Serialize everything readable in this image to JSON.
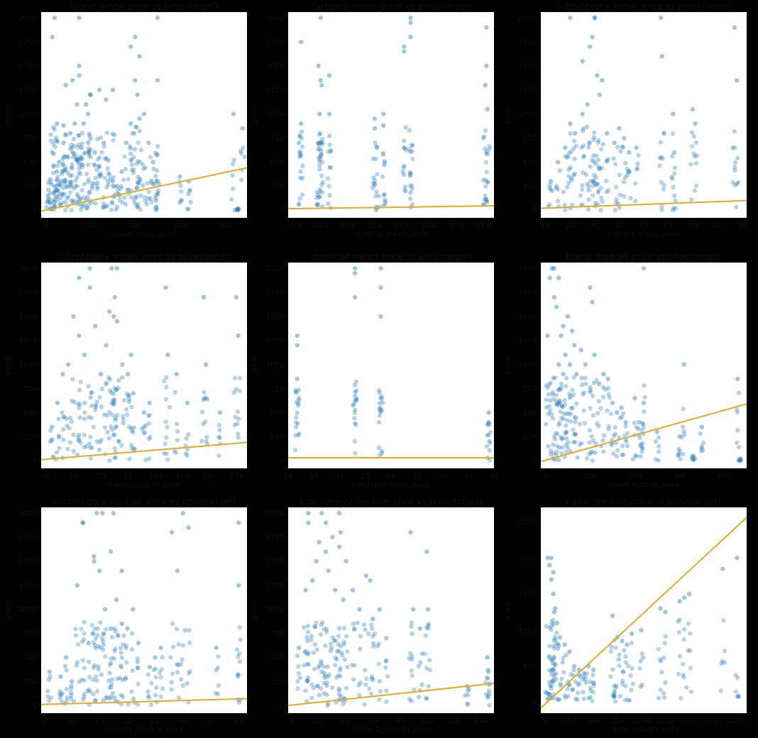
{
  "colors": {
    "background": "#000000",
    "plot_bg": "#ffffff",
    "point": "#2f7fb6",
    "fit_line": "#e6a827",
    "axis_text": "#111111"
  },
  "chart_data": [
    {
      "type": "scatter",
      "title": "brand_mean_price vs price(target)",
      "xlabel": "brand_mean_price",
      "ylabel": "price",
      "xlim": [
        -10,
        450
      ],
      "ylim": [
        -80,
        2060
      ],
      "xticks": [
        0,
        100,
        200,
        300,
        400
      ],
      "yticks": [
        0,
        250,
        500,
        750,
        1000,
        1250,
        1500,
        1750,
        2000
      ],
      "xtick_labels": [
        "0",
        "100",
        "200",
        "300",
        "400"
      ],
      "ytick_labels": [
        "0",
        "250",
        "500",
        "750",
        "1000",
        "1250",
        "1500",
        "1750",
        "2000"
      ],
      "fit_line": {
        "x": [
          -10,
          450
        ],
        "y": [
          -10,
          440
        ]
      },
      "points": {
        "x": [
          5,
          10,
          15,
          20,
          25,
          30,
          35,
          40,
          45,
          50,
          55,
          60,
          65,
          70,
          75,
          80,
          85,
          90,
          95,
          100,
          110,
          120,
          130,
          140,
          150,
          160,
          170,
          180,
          190,
          200,
          210,
          220,
          230,
          240,
          250,
          15,
          20,
          25,
          45,
          60,
          75,
          95,
          100,
          135,
          200,
          205,
          210,
          250,
          300,
          320,
          420,
          430,
          440,
          75,
          190,
          250,
          40,
          120,
          150
        ],
        "y": [
          150,
          320,
          600,
          250,
          400,
          500,
          300,
          700,
          420,
          550,
          800,
          600,
          900,
          1100,
          2000,
          650,
          900,
          1100,
          700,
          1200,
          600,
          450,
          700,
          520,
          300,
          250,
          400,
          700,
          900,
          1800,
          1600,
          1000,
          700,
          500,
          300,
          1800,
          2000,
          900,
          1300,
          1350,
          1400,
          1000,
          1200,
          1150,
          1350,
          1200,
          950,
          2000,
          350,
          300,
          1000,
          20,
          850,
          1500,
          1700,
          1350,
          880,
          1250,
          1250
        ]
      }
    },
    {
      "type": "scatter",
      "title": "category_mean_price vs price(target)",
      "xlabel": "general_mean_price",
      "ylabel": "price",
      "xlim": [
        17,
        36
      ],
      "ylim": [
        -80,
        2060
      ],
      "xticks": [
        17.5,
        20,
        22.5,
        25,
        27.5,
        30,
        32.5,
        35
      ],
      "yticks": [
        0,
        250,
        500,
        750,
        1000,
        1250,
        1500,
        1750,
        2000
      ],
      "xtick_labels": [
        "17.5",
        "20.0",
        "22.5",
        "25.0",
        "27.5",
        "30.0",
        "32.5",
        "35.0"
      ],
      "ytick_labels": [
        "0",
        "250",
        "500",
        "750",
        "1000",
        "1250",
        "1500",
        "1750",
        "2000"
      ],
      "fit_line": {
        "x": [
          17,
          36
        ],
        "y": [
          15,
          45
        ]
      },
      "points": {
        "x": [
          18.2,
          18.2,
          19.8,
          19.8,
          20,
          20,
          20.8,
          20.8,
          25,
          25,
          25.8,
          25.8,
          27.7,
          27.7,
          28.3,
          28.3,
          28.3,
          35.3,
          35.3,
          35.2,
          35.4,
          19.9,
          18,
          20.1,
          25.2
        ],
        "y": [
          900,
          1750,
          700,
          1500,
          1350,
          2000,
          1000,
          1400,
          850,
          950,
          880,
          1000,
          1650,
          1700,
          2000,
          1800,
          1950,
          1900,
          1500,
          1300,
          1050,
          1000,
          700,
          1300,
          650
        ]
      }
    },
    {
      "type": "scatter",
      "title": "subcategory_mean_price vs price(target)",
      "xlabel": "subcat1_mean_price",
      "ylabel": "price",
      "xlim": [
        8,
        92
      ],
      "ylim": [
        -80,
        2060
      ],
      "xticks": [
        10,
        20,
        30,
        40,
        50,
        60,
        70,
        80,
        90
      ],
      "yticks": [
        0,
        250,
        500,
        750,
        1000,
        1250,
        1500,
        1750,
        2000
      ],
      "xtick_labels": [
        "10",
        "20",
        "30",
        "40",
        "50",
        "60",
        "70",
        "80",
        "90"
      ],
      "ytick_labels": [
        "0",
        "250",
        "500",
        "750",
        "1000",
        "1250",
        "1500",
        "1750",
        "2000"
      ],
      "fit_line": {
        "x": [
          8,
          92
        ],
        "y": [
          20,
          100
        ]
      },
      "points": {
        "x": [
          12,
          15,
          18,
          20,
          22,
          25,
          27,
          28,
          30,
          32,
          33,
          35,
          38,
          40,
          42,
          44,
          47,
          57,
          57.5,
          62,
          62.5,
          70,
          71,
          87,
          88,
          20,
          25,
          29,
          30,
          31
        ],
        "y": [
          300,
          500,
          650,
          900,
          800,
          1000,
          1100,
          1700,
          2000,
          1200,
          1350,
          800,
          700,
          850,
          750,
          600,
          650,
          2000,
          1600,
          1000,
          600,
          1050,
          900,
          1900,
          1350,
          2000,
          1550,
          1800,
          2000,
          1400
        ]
      }
    },
    {
      "type": "scatter",
      "title": "subcategory_mean_price vs price(target)",
      "xlabel": "subcat2_mean_price",
      "ylabel": "price",
      "xlim": [
        -5,
        185
      ],
      "ylim": [
        -80,
        2060
      ],
      "xticks": [
        0,
        25,
        50,
        75,
        100,
        125,
        150,
        175
      ],
      "yticks": [
        0,
        250,
        500,
        750,
        1000,
        1250,
        1500,
        1750,
        2000
      ],
      "xtick_labels": [
        "0",
        "25",
        "50",
        "75",
        "100",
        "125",
        "150",
        "175"
      ],
      "ytick_labels": [
        "0",
        "250",
        "500",
        "750",
        "1000",
        "1250",
        "1500",
        "1750",
        "2000"
      ],
      "fit_line": {
        "x": [
          -5,
          185
        ],
        "y": [
          10,
          190
        ]
      },
      "points": {
        "x": [
          5,
          10,
          15,
          20,
          25,
          30,
          35,
          40,
          45,
          50,
          55,
          60,
          62,
          65,
          70,
          75,
          80,
          90,
          95,
          110,
          112,
          130,
          145,
          147,
          160,
          175,
          177,
          30,
          40,
          58,
          63,
          65,
          78,
          120
        ],
        "y": [
          350,
          600,
          900,
          1000,
          1500,
          1300,
          1100,
          1800,
          1400,
          900,
          1200,
          2000,
          1500,
          2000,
          1000,
          900,
          700,
          500,
          600,
          1800,
          1100,
          600,
          1700,
          1000,
          500,
          1700,
          1300,
          1900,
          2000,
          1550,
          1700,
          1450,
          1100,
          900
        ]
      }
    },
    {
      "type": "scatter",
      "title": "condition_mean_price vs price(target)",
      "xlabel": "condition_mean_price",
      "ylabel": "price",
      "xlim": [
        24,
        32
      ],
      "ylim": [
        -80,
        2060
      ],
      "xticks": [
        24,
        25,
        26,
        27,
        28,
        29,
        30,
        31,
        32
      ],
      "yticks": [
        0,
        250,
        500,
        750,
        1000,
        1250,
        1500,
        1750,
        2000
      ],
      "xtick_labels": [
        "24",
        "25",
        "26",
        "27",
        "28",
        "29",
        "30",
        "31",
        "32"
      ],
      "ytick_labels": [
        "0",
        "250",
        "500",
        "750",
        "1000",
        "1250",
        "1500",
        "1750",
        "2000"
      ],
      "fit_line": {
        "x": [
          24,
          32
        ],
        "y": [
          30,
          30
        ]
      },
      "points": {
        "x": [
          24.35,
          24.35,
          24.35,
          26.6,
          26.6,
          26.6,
          27.6,
          27.6,
          27.6,
          31.8,
          31.8
        ],
        "y": [
          1300,
          1200,
          850,
          2000,
          1700,
          1950,
          2000,
          1800,
          1500,
          500,
          400
        ]
      }
    },
    {
      "type": "scatter",
      "title": "brand_median_price vs price(target)",
      "xlabel": "brand_median_price",
      "ylabel": "price",
      "xlim": [
        -10,
        450
      ],
      "ylim": [
        -80,
        2060
      ],
      "xticks": [
        0,
        100,
        200,
        300,
        400
      ],
      "yticks": [
        0,
        250,
        500,
        750,
        1000,
        1250,
        1500,
        1750,
        2000
      ],
      "xtick_labels": [
        "0",
        "100",
        "200",
        "300",
        "400"
      ],
      "ytick_labels": [
        "0",
        "250",
        "500",
        "750",
        "1000",
        "1250",
        "1500",
        "1750",
        "2000"
      ],
      "fit_line": {
        "x": [
          -10,
          450
        ],
        "y": [
          -10,
          590
        ]
      },
      "points": {
        "x": [
          5,
          10,
          15,
          20,
          25,
          30,
          35,
          40,
          45,
          50,
          55,
          60,
          65,
          70,
          80,
          90,
          100,
          105,
          110,
          120,
          130,
          140,
          150,
          160,
          170,
          180,
          200,
          210,
          220,
          250,
          300,
          310,
          330,
          350,
          430,
          435,
          20,
          30,
          40,
          220
        ],
        "y": [
          1300,
          1900,
          2000,
          1700,
          1600,
          1000,
          1300,
          900,
          1100,
          1500,
          1000,
          1350,
          1200,
          900,
          1150,
          1000,
          1800,
          1650,
          1100,
          800,
          900,
          850,
          600,
          500,
          550,
          400,
          650,
          400,
          600,
          300,
          250,
          1000,
          50,
          350,
          850,
          20,
          2000,
          1900,
          1400,
          2000
        ]
      }
    },
    {
      "type": "scatter",
      "title": "subcategory_median_price vs price(target)",
      "xlabel": "subcat1_median_price",
      "ylabel": "price",
      "xlim": [
        4.5,
        41.5
      ],
      "ylim": [
        -80,
        2060
      ],
      "xticks": [
        5,
        10,
        15,
        20,
        25,
        30,
        35,
        40
      ],
      "yticks": [
        0,
        250,
        500,
        750,
        1000,
        1250,
        1500,
        1750,
        2000
      ],
      "xtick_labels": [
        "5",
        "10",
        "15",
        "20",
        "25",
        "30",
        "35",
        "40"
      ],
      "ytick_labels": [
        "0",
        "250",
        "500",
        "750",
        "1000",
        "1250",
        "1500",
        "1750",
        "2000"
      ],
      "fit_line": {
        "x": [
          4.5,
          41.5
        ],
        "y": [
          10,
          70
        ]
      },
      "points": {
        "x": [
          6,
          8,
          9,
          10,
          11,
          12,
          13,
          14,
          14.5,
          15,
          15.5,
          16,
          17,
          17.5,
          18,
          19,
          20,
          21,
          22,
          24,
          25,
          26,
          28,
          30,
          31,
          36,
          40,
          40,
          12,
          14,
          19,
          17,
          29
        ],
        "y": [
          350,
          300,
          500,
          250,
          1250,
          1900,
          650,
          1500,
          2000,
          1400,
          2000,
          1000,
          800,
          2000,
          1100,
          850,
          800,
          1000,
          650,
          400,
          500,
          600,
          1800,
          2000,
          1850,
          600,
          1900,
          1250,
          1900,
          1550,
          1400,
          1600,
          1400
        ]
      }
    },
    {
      "type": "scatter",
      "title": "subcategory_median_price vs price(target)",
      "xlabel": "subcat2_median_price",
      "ylabel": "price",
      "xlim": [
        -3,
        150
      ],
      "ylim": [
        -80,
        2060
      ],
      "xticks": [
        0,
        20,
        40,
        60,
        80,
        100,
        120,
        140
      ],
      "yticks": [
        0,
        250,
        500,
        750,
        1000,
        1250,
        1500,
        1750,
        2000
      ],
      "xtick_labels": [
        "0",
        "20",
        "40",
        "60",
        "80",
        "100",
        "120",
        "140"
      ],
      "ytick_labels": [
        "0",
        "250",
        "500",
        "750",
        "1000",
        "1250",
        "1500",
        "1750",
        "2000"
      ],
      "fit_line": {
        "x": [
          -3,
          150
        ],
        "y": [
          0,
          230
        ]
      },
      "points": {
        "x": [
          5,
          10,
          12,
          15,
          18,
          20,
          22,
          25,
          27,
          30,
          32,
          35,
          36,
          38,
          40,
          45,
          50,
          55,
          58,
          60,
          65,
          70,
          88,
          90,
          95,
          100,
          101,
          130,
          145,
          146,
          12,
          25,
          35
        ],
        "y": [
          600,
          1200,
          1900,
          1300,
          1500,
          1700,
          2000,
          1600,
          1400,
          1750,
          1200,
          2000,
          1800,
          1100,
          1500,
          1200,
          1000,
          1350,
          1300,
          900,
          1000,
          700,
          1800,
          1000,
          800,
          1600,
          1000,
          200,
          500,
          350,
          2000,
          1900,
          1650
        ]
      }
    },
    {
      "type": "scatter",
      "title": "name_median_price vs price(target)",
      "xlabel": "name_median_price",
      "ylabel": "price",
      "xlim": [
        -50,
        2100
      ],
      "ylim": [
        -150,
        2700
      ],
      "xticks": [
        0,
        250,
        500,
        750,
        1000,
        1250,
        1500,
        1750,
        2000
      ],
      "yticks": [
        0,
        500,
        1000,
        1500,
        2000,
        2500
      ],
      "xtick_labels": [
        "0",
        "250",
        "500",
        "750",
        "1000",
        "1250",
        "1500",
        "1750",
        "2000"
      ],
      "ytick_labels": [
        "0",
        "500",
        "1000",
        "1500",
        "2000",
        "2500"
      ],
      "fit_line": {
        "x": [
          -50,
          2100
        ],
        "y": [
          -80,
          2560
        ]
      },
      "points": {
        "x": [
          20,
          40,
          60,
          80,
          100,
          120,
          150,
          200,
          250,
          300,
          350,
          400,
          450,
          500,
          700,
          720,
          750,
          800,
          850,
          900,
          1000,
          1200,
          1250,
          1400,
          1450,
          1500,
          1850,
          2000,
          60,
          80,
          90
        ],
        "y": [
          2000,
          1900,
          1700,
          1500,
          1300,
          1100,
          900,
          800,
          700,
          500,
          450,
          400,
          500,
          450,
          1200,
          150,
          900,
          850,
          800,
          950,
          1000,
          1300,
          1250,
          1400,
          1450,
          1500,
          1850,
          2000,
          2000,
          1800,
          1250
        ]
      }
    }
  ]
}
